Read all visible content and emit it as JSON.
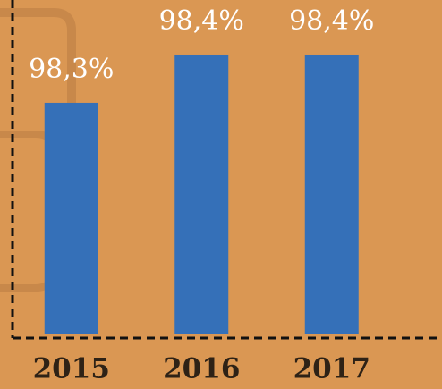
{
  "chart_data": {
    "type": "bar",
    "categories": [
      "2015",
      "2016",
      "2017"
    ],
    "values": [
      98.3,
      98.4,
      98.4
    ],
    "value_labels": [
      "98,3%",
      "98,4%",
      "98,4%"
    ],
    "color": "#3570b8",
    "ylim": [
      97.82,
      98.45
    ]
  }
}
